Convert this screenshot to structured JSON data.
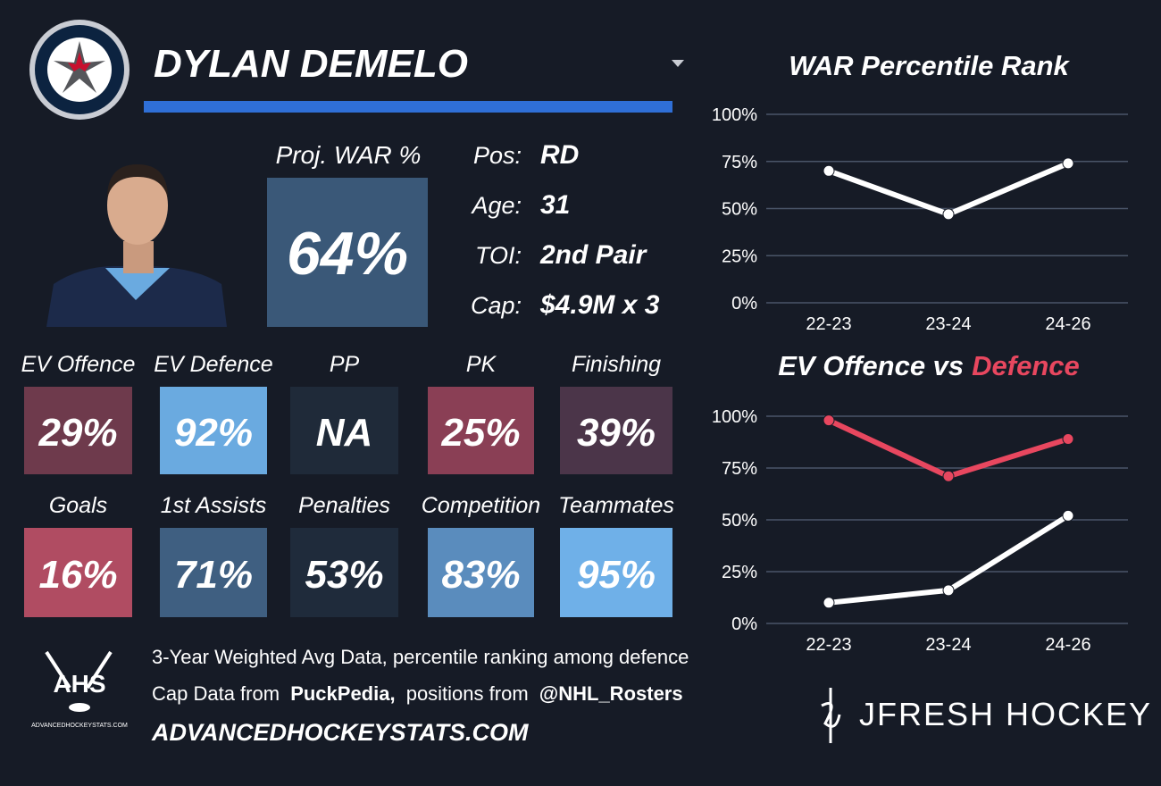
{
  "player": {
    "name": "DYLAN DEMELO",
    "proj_label": "Proj. WAR %",
    "proj_value": "64%",
    "info": [
      {
        "label": "Pos:",
        "value": "RD"
      },
      {
        "label": "Age:",
        "value": "31"
      },
      {
        "label": "TOI:",
        "value": "2nd Pair"
      },
      {
        "label": "Cap:",
        "value": "$4.9M x 3"
      }
    ]
  },
  "tiles": [
    {
      "label": "EV Offence",
      "value": "29%",
      "color": "#6e3a4c"
    },
    {
      "label": "EV Defence",
      "value": "92%",
      "color": "#6aaae0"
    },
    {
      "label": "PP",
      "value": "NA",
      "color": "#1f2a39"
    },
    {
      "label": "PK",
      "value": "25%",
      "color": "#8a3f55"
    },
    {
      "label": "Finishing",
      "value": "39%",
      "color": "#4b3549"
    },
    {
      "label": "Goals",
      "value": "16%",
      "color": "#b04c62"
    },
    {
      "label": "1st Assists",
      "value": "71%",
      "color": "#3f5f81"
    },
    {
      "label": "Penalties",
      "value": "53%",
      "color": "#1f2b3b"
    },
    {
      "label": "Competition",
      "value": "83%",
      "color": "#5a8cbd"
    },
    {
      "label": "Teammates",
      "value": "95%",
      "color": "#6fb0e8"
    }
  ],
  "footer": {
    "line1": "3-Year Weighted Avg Data, percentile ranking among defence",
    "line2": [
      "Cap Data from",
      "PuckPedia,",
      "positions from",
      "@NHL_Rosters"
    ],
    "site": "ADVANCEDHOCKEYSTATS.COM",
    "ahs_logo": "AHS",
    "ahs_small": "ADVANCEDHOCKEYSTATS.COM",
    "brand": "JFRESH HOCKEY"
  },
  "chart_data": [
    {
      "type": "line",
      "title": "WAR Percentile Rank",
      "categories": [
        "22-23",
        "23-24",
        "24-26"
      ],
      "series": [
        {
          "color": "#ffffff",
          "values": [
            70,
            47,
            74
          ]
        }
      ],
      "ylim": [
        0,
        100
      ],
      "yticks": [
        {
          "value": 0,
          "label": "0%"
        },
        {
          "value": 25,
          "label": "25%"
        },
        {
          "value": 50,
          "label": "50%"
        },
        {
          "value": 75,
          "label": "75%"
        },
        {
          "value": 100,
          "label": "100%"
        }
      ],
      "grid": true
    },
    {
      "type": "line",
      "title": "EV Offence vs",
      "title_highlight": "Defence",
      "categories": [
        "22-23",
        "23-24",
        "24-26"
      ],
      "series": [
        {
          "color": "#ffffff",
          "values": [
            10,
            16,
            52
          ]
        },
        {
          "color": "#e8475f",
          "values": [
            98,
            71,
            89
          ]
        }
      ],
      "ylim": [
        0,
        100
      ],
      "yticks": [
        {
          "value": 0,
          "label": "0%"
        },
        {
          "value": 25,
          "label": "25%"
        },
        {
          "value": 50,
          "label": "50%"
        },
        {
          "value": 75,
          "label": "75%"
        },
        {
          "value": 100,
          "label": "100%"
        }
      ],
      "grid": true
    }
  ]
}
